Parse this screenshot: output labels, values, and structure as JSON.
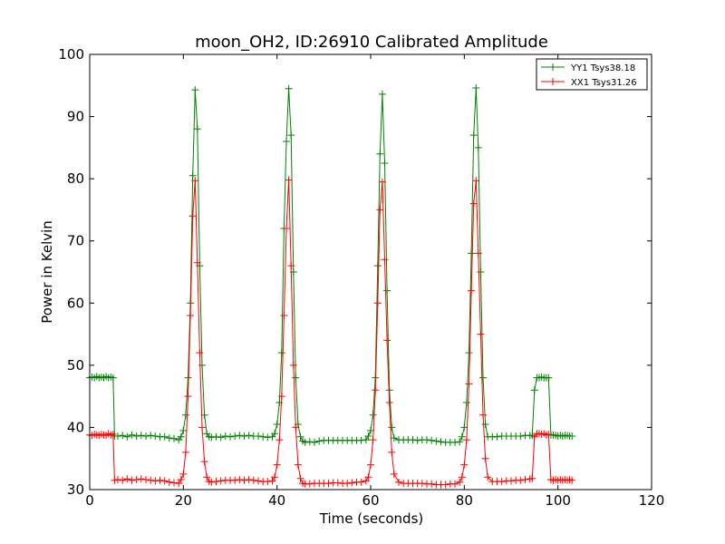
{
  "chart_data": {
    "type": "line",
    "title": "moon_OH2, ID:26910 Calibrated Amplitude",
    "xlabel": "Time (seconds)",
    "ylabel": "Power in Kelvin",
    "xlim": [
      0,
      120
    ],
    "ylim": [
      30,
      100
    ],
    "xticks": [
      "0",
      "20",
      "40",
      "60",
      "80",
      "100",
      "120"
    ],
    "yticks": [
      "30",
      "40",
      "50",
      "60",
      "70",
      "80",
      "90",
      "100"
    ],
    "grid": false,
    "legend_position": "top-right",
    "series": [
      {
        "name": "YY1 Tsys38.18",
        "color": "#008000",
        "marker": "plus",
        "points": [
          [
            0.0,
            48.0
          ],
          [
            0.5,
            48.1
          ],
          [
            1.0,
            48.0
          ],
          [
            1.5,
            48.2
          ],
          [
            2.0,
            48.0
          ],
          [
            2.5,
            48.1
          ],
          [
            3.0,
            48.0
          ],
          [
            3.5,
            48.2
          ],
          [
            4.0,
            48.0
          ],
          [
            4.5,
            48.1
          ],
          [
            5.0,
            48.0
          ],
          [
            5.3,
            38.6
          ],
          [
            6.0,
            38.6
          ],
          [
            7.0,
            38.7
          ],
          [
            8.0,
            38.5
          ],
          [
            9.0,
            38.8
          ],
          [
            10.0,
            38.6
          ],
          [
            11.0,
            38.7
          ],
          [
            12.0,
            38.6
          ],
          [
            13.0,
            38.7
          ],
          [
            14.0,
            38.6
          ],
          [
            15.0,
            38.5
          ],
          [
            16.0,
            38.5
          ],
          [
            17.0,
            38.3
          ],
          [
            18.0,
            38.2
          ],
          [
            19.0,
            38.0
          ],
          [
            19.5,
            38.5
          ],
          [
            20.0,
            39.5
          ],
          [
            20.5,
            42.0
          ],
          [
            21.0,
            48.0
          ],
          [
            21.5,
            60.0
          ],
          [
            22.0,
            80.5
          ],
          [
            22.5,
            94.3
          ],
          [
            23.0,
            88.0
          ],
          [
            23.5,
            66.0
          ],
          [
            24.0,
            50.0
          ],
          [
            24.5,
            42.0
          ],
          [
            25.0,
            39.0
          ],
          [
            25.5,
            38.5
          ],
          [
            26.0,
            38.4
          ],
          [
            27.0,
            38.5
          ],
          [
            28.0,
            38.4
          ],
          [
            29.0,
            38.6
          ],
          [
            30.0,
            38.5
          ],
          [
            31.0,
            38.6
          ],
          [
            32.0,
            38.7
          ],
          [
            33.0,
            38.6
          ],
          [
            34.0,
            38.7
          ],
          [
            35.0,
            38.6
          ],
          [
            36.0,
            38.6
          ],
          [
            37.0,
            38.5
          ],
          [
            38.0,
            38.4
          ],
          [
            39.0,
            38.5
          ],
          [
            39.5,
            39.0
          ],
          [
            40.0,
            40.5
          ],
          [
            40.5,
            44.0
          ],
          [
            41.0,
            52.0
          ],
          [
            41.5,
            72.0
          ],
          [
            42.0,
            86.0
          ],
          [
            42.5,
            94.5
          ],
          [
            43.0,
            87.0
          ],
          [
            43.5,
            65.0
          ],
          [
            44.0,
            48.0
          ],
          [
            44.5,
            40.5
          ],
          [
            45.0,
            38.5
          ],
          [
            45.5,
            37.8
          ],
          [
            46.0,
            37.6
          ],
          [
            47.0,
            37.7
          ],
          [
            48.0,
            37.6
          ],
          [
            49.0,
            37.8
          ],
          [
            50.0,
            37.9
          ],
          [
            51.0,
            37.9
          ],
          [
            52.0,
            37.9
          ],
          [
            53.0,
            37.9
          ],
          [
            54.0,
            37.9
          ],
          [
            55.0,
            37.9
          ],
          [
            56.0,
            37.9
          ],
          [
            57.0,
            37.9
          ],
          [
            58.0,
            37.9
          ],
          [
            59.0,
            38.0
          ],
          [
            59.5,
            38.6
          ],
          [
            60.0,
            39.5
          ],
          [
            60.5,
            42.0
          ],
          [
            61.0,
            48.0
          ],
          [
            61.5,
            66.0
          ],
          [
            62.0,
            84.0
          ],
          [
            62.5,
            93.6
          ],
          [
            63.0,
            82.5
          ],
          [
            63.5,
            62.0
          ],
          [
            64.0,
            46.0
          ],
          [
            64.5,
            40.0
          ],
          [
            65.0,
            38.3
          ],
          [
            66.0,
            38.0
          ],
          [
            67.0,
            38.0
          ],
          [
            68.0,
            38.0
          ],
          [
            69.0,
            38.0
          ],
          [
            70.0,
            37.9
          ],
          [
            71.0,
            38.0
          ],
          [
            72.0,
            38.0
          ],
          [
            73.0,
            37.9
          ],
          [
            74.0,
            37.8
          ],
          [
            75.0,
            37.7
          ],
          [
            76.0,
            37.6
          ],
          [
            77.0,
            37.6
          ],
          [
            78.0,
            37.6
          ],
          [
            79.0,
            37.7
          ],
          [
            79.5,
            38.5
          ],
          [
            80.0,
            40.0
          ],
          [
            80.5,
            44.0
          ],
          [
            81.0,
            52.0
          ],
          [
            81.5,
            68.0
          ],
          [
            82.0,
            87.0
          ],
          [
            82.5,
            94.6
          ],
          [
            83.0,
            85.0
          ],
          [
            83.5,
            65.0
          ],
          [
            84.0,
            48.0
          ],
          [
            84.5,
            40.5
          ],
          [
            85.0,
            38.5
          ],
          [
            86.0,
            38.5
          ],
          [
            87.0,
            38.5
          ],
          [
            88.0,
            38.6
          ],
          [
            89.0,
            38.6
          ],
          [
            90.0,
            38.6
          ],
          [
            91.0,
            38.6
          ],
          [
            92.0,
            38.6
          ],
          [
            93.0,
            38.7
          ],
          [
            94.0,
            38.7
          ],
          [
            94.5,
            38.7
          ],
          [
            95.0,
            46.0
          ],
          [
            95.5,
            48.0
          ],
          [
            96.0,
            48.0
          ],
          [
            96.5,
            48.1
          ],
          [
            97.0,
            48.0
          ],
          [
            97.5,
            48.0
          ],
          [
            98.0,
            48.0
          ],
          [
            98.5,
            38.8
          ],
          [
            99.0,
            38.8
          ],
          [
            99.5,
            38.7
          ],
          [
            100.0,
            38.6
          ],
          [
            100.5,
            38.7
          ],
          [
            101.0,
            38.6
          ],
          [
            101.5,
            38.7
          ],
          [
            102.0,
            38.7
          ],
          [
            102.5,
            38.6
          ],
          [
            103.0,
            38.6
          ]
        ]
      },
      {
        "name": "XX1 Tsys31.26",
        "color": "#ff0000",
        "marker": "plus",
        "points": [
          [
            0.0,
            38.8
          ],
          [
            0.5,
            38.7
          ],
          [
            1.0,
            38.9
          ],
          [
            1.5,
            38.8
          ],
          [
            2.0,
            38.7
          ],
          [
            2.5,
            38.9
          ],
          [
            3.0,
            38.8
          ],
          [
            3.5,
            38.7
          ],
          [
            4.0,
            39.0
          ],
          [
            4.5,
            38.8
          ],
          [
            5.0,
            38.9
          ],
          [
            5.3,
            31.5
          ],
          [
            6.0,
            31.6
          ],
          [
            7.0,
            31.5
          ],
          [
            8.0,
            31.7
          ],
          [
            9.0,
            31.5
          ],
          [
            10.0,
            31.6
          ],
          [
            11.0,
            31.7
          ],
          [
            12.0,
            31.6
          ],
          [
            13.0,
            31.5
          ],
          [
            14.0,
            31.4
          ],
          [
            15.0,
            31.5
          ],
          [
            16.0,
            31.4
          ],
          [
            17.0,
            31.2
          ],
          [
            18.0,
            31.1
          ],
          [
            19.0,
            31.0
          ],
          [
            19.5,
            31.6
          ],
          [
            20.0,
            32.5
          ],
          [
            20.5,
            36.0
          ],
          [
            21.0,
            45.0
          ],
          [
            21.5,
            58.0
          ],
          [
            22.0,
            74.0
          ],
          [
            22.5,
            79.7
          ],
          [
            23.0,
            66.5
          ],
          [
            23.5,
            52.0
          ],
          [
            24.0,
            40.0
          ],
          [
            24.5,
            34.5
          ],
          [
            25.0,
            32.0
          ],
          [
            25.5,
            31.3
          ],
          [
            26.0,
            31.2
          ],
          [
            27.0,
            31.3
          ],
          [
            28.0,
            31.4
          ],
          [
            29.0,
            31.5
          ],
          [
            30.0,
            31.5
          ],
          [
            31.0,
            31.5
          ],
          [
            32.0,
            31.6
          ],
          [
            33.0,
            31.5
          ],
          [
            34.0,
            31.6
          ],
          [
            35.0,
            31.5
          ],
          [
            36.0,
            31.4
          ],
          [
            37.0,
            31.3
          ],
          [
            38.0,
            31.3
          ],
          [
            39.0,
            31.4
          ],
          [
            39.5,
            32.0
          ],
          [
            40.0,
            34.0
          ],
          [
            40.5,
            38.0
          ],
          [
            41.0,
            45.0
          ],
          [
            41.5,
            58.0
          ],
          [
            42.0,
            72.0
          ],
          [
            42.5,
            79.8
          ],
          [
            43.0,
            66.0
          ],
          [
            43.5,
            50.0
          ],
          [
            44.0,
            40.0
          ],
          [
            44.5,
            34.0
          ],
          [
            45.0,
            31.8
          ],
          [
            45.5,
            31.0
          ],
          [
            46.0,
            30.9
          ],
          [
            47.0,
            30.9
          ],
          [
            48.0,
            31.0
          ],
          [
            49.0,
            31.0
          ],
          [
            50.0,
            31.0
          ],
          [
            51.0,
            31.0
          ],
          [
            52.0,
            31.1
          ],
          [
            53.0,
            31.1
          ],
          [
            54.0,
            31.0
          ],
          [
            55.0,
            31.0
          ],
          [
            56.0,
            31.1
          ],
          [
            57.0,
            31.2
          ],
          [
            58.0,
            31.2
          ],
          [
            59.0,
            31.4
          ],
          [
            59.5,
            32.0
          ],
          [
            60.0,
            34.0
          ],
          [
            60.5,
            38.0
          ],
          [
            61.0,
            46.0
          ],
          [
            61.5,
            60.0
          ],
          [
            62.0,
            75.0
          ],
          [
            62.5,
            79.5
          ],
          [
            63.0,
            67.0
          ],
          [
            63.5,
            54.0
          ],
          [
            64.0,
            44.0
          ],
          [
            64.5,
            36.0
          ],
          [
            65.0,
            32.5
          ],
          [
            66.0,
            31.2
          ],
          [
            67.0,
            31.0
          ],
          [
            68.0,
            31.0
          ],
          [
            69.0,
            31.0
          ],
          [
            70.0,
            31.0
          ],
          [
            71.0,
            31.0
          ],
          [
            72.0,
            30.9
          ],
          [
            73.0,
            30.9
          ],
          [
            74.0,
            30.8
          ],
          [
            75.0,
            30.8
          ],
          [
            76.0,
            30.8
          ],
          [
            77.0,
            30.9
          ],
          [
            78.0,
            30.9
          ],
          [
            79.0,
            31.2
          ],
          [
            79.5,
            32.0
          ],
          [
            80.0,
            34.0
          ],
          [
            80.5,
            38.0
          ],
          [
            81.0,
            47.0
          ],
          [
            81.5,
            62.0
          ],
          [
            82.0,
            76.0
          ],
          [
            82.5,
            79.7
          ],
          [
            83.0,
            68.0
          ],
          [
            83.5,
            55.0
          ],
          [
            84.0,
            42.0
          ],
          [
            84.5,
            35.0
          ],
          [
            85.0,
            32.0
          ],
          [
            86.0,
            31.3
          ],
          [
            87.0,
            31.3
          ],
          [
            88.0,
            31.3
          ],
          [
            89.0,
            31.4
          ],
          [
            90.0,
            31.4
          ],
          [
            91.0,
            31.5
          ],
          [
            92.0,
            31.5
          ],
          [
            93.0,
            31.6
          ],
          [
            94.0,
            31.7
          ],
          [
            94.5,
            31.8
          ],
          [
            95.0,
            38.5
          ],
          [
            95.5,
            39.0
          ],
          [
            96.0,
            39.0
          ],
          [
            96.5,
            38.9
          ],
          [
            97.0,
            39.0
          ],
          [
            97.5,
            38.8
          ],
          [
            98.0,
            38.9
          ],
          [
            98.5,
            31.6
          ],
          [
            99.0,
            31.5
          ],
          [
            99.5,
            31.6
          ],
          [
            100.0,
            31.5
          ],
          [
            100.5,
            31.6
          ],
          [
            101.0,
            31.5
          ],
          [
            101.5,
            31.6
          ],
          [
            102.0,
            31.5
          ],
          [
            102.5,
            31.6
          ],
          [
            103.0,
            31.5
          ]
        ]
      }
    ]
  }
}
